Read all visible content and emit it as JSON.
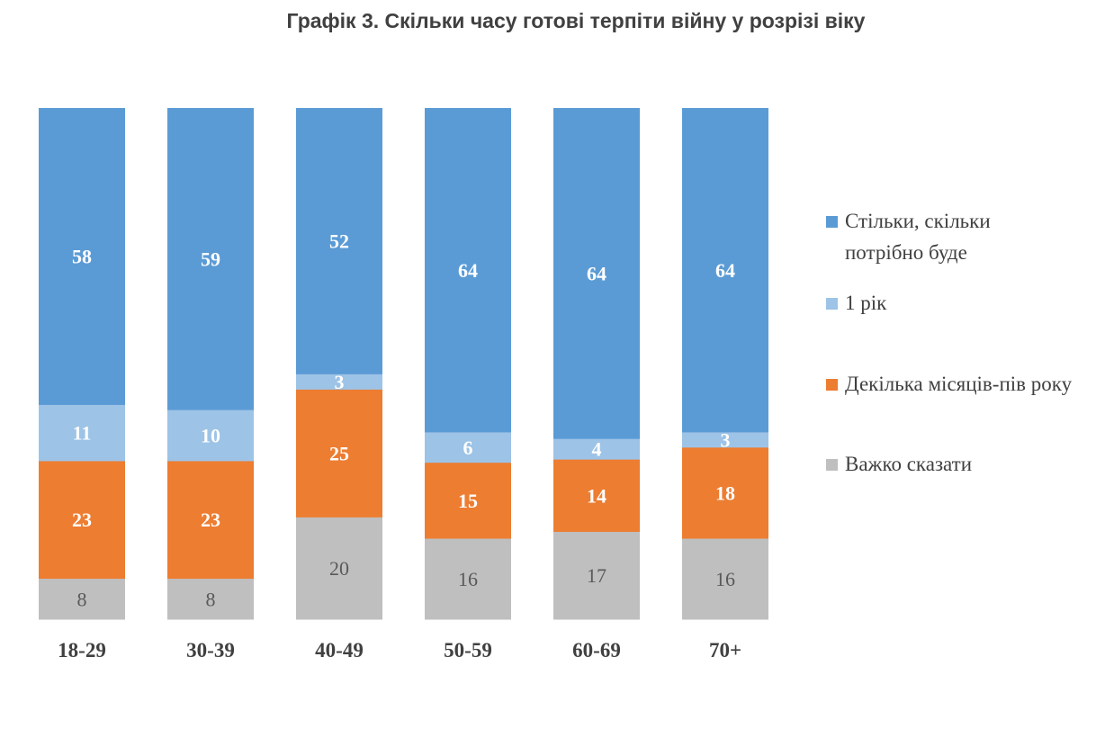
{
  "chart_data": {
    "type": "bar",
    "stacked": true,
    "title": "Графік 3. Скільки часу готові терпіти війну у розрізі віку",
    "categories": [
      "18-29",
      "30-39",
      "40-49",
      "50-59",
      "60-69",
      "70+"
    ],
    "series": [
      {
        "name": "Стільки, скільки потрібно буде",
        "color": "#5B9BD5",
        "values": [
          58,
          59,
          52,
          64,
          64,
          64
        ]
      },
      {
        "name": "1 рік",
        "color": "#9DC3E6",
        "values": [
          11,
          10,
          3,
          6,
          4,
          3
        ]
      },
      {
        "name": "Декілька місяців-пів року",
        "color": "#ED7D31",
        "values": [
          23,
          23,
          25,
          15,
          14,
          18
        ]
      },
      {
        "name": "Важко сказати",
        "color": "#BFBFBF",
        "values": [
          8,
          8,
          20,
          16,
          17,
          16
        ]
      }
    ],
    "ylim": [
      0,
      100
    ],
    "grid": false,
    "legend_position": "right",
    "xlabel": "",
    "ylabel": ""
  }
}
